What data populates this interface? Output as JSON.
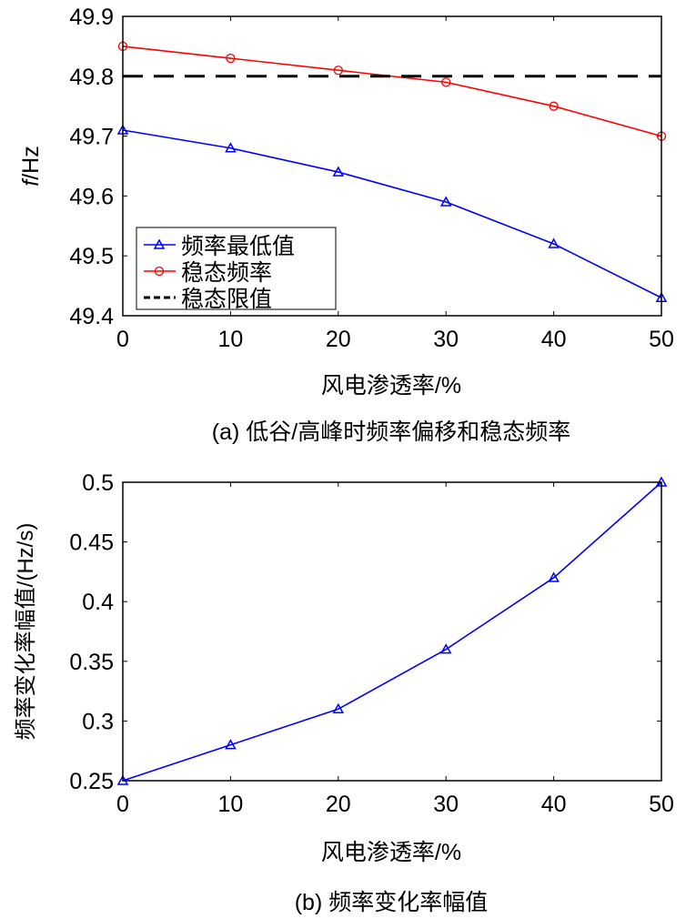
{
  "chart_data": [
    {
      "type": "line",
      "title": "",
      "caption": "(a) 低谷/高峰时频率偏移和稳态频率",
      "xlabel": "风电渗透率/%",
      "ylabel_italic": "f",
      "ylabel_rest": "/Hz",
      "xlim": [
        0,
        50
      ],
      "ylim": [
        49.4,
        49.9
      ],
      "xticks": [
        "0",
        "10",
        "20",
        "30",
        "40",
        "50"
      ],
      "yticks": [
        "49.4",
        "49.5",
        "49.6",
        "49.7",
        "49.8",
        "49.9"
      ],
      "x": [
        0,
        10,
        20,
        30,
        40,
        50
      ],
      "legend_position": "bottom-left",
      "series": [
        {
          "name": "频率最低值",
          "color": "#0000ff",
          "marker": "triangle",
          "values": [
            49.71,
            49.68,
            49.64,
            49.59,
            49.52,
            49.43
          ]
        },
        {
          "name": "稳态频率",
          "color": "#ff0000",
          "marker": "circle",
          "values": [
            49.85,
            49.83,
            49.81,
            49.79,
            49.75,
            49.7
          ]
        },
        {
          "name": "稳态限值",
          "color": "#000000",
          "marker": "none",
          "dashed": true,
          "values": [
            49.8,
            49.8,
            49.8,
            49.8,
            49.8,
            49.8
          ]
        }
      ]
    },
    {
      "type": "line",
      "title": "",
      "caption": "(b) 频率变化率幅值",
      "xlabel": "风电渗透率/%",
      "ylabel": "频率变化率幅值/(Hz/s)",
      "xlim": [
        0,
        50
      ],
      "ylim": [
        0.25,
        0.5
      ],
      "xticks": [
        "0",
        "10",
        "20",
        "30",
        "40",
        "50"
      ],
      "yticks": [
        "0.25",
        "0.3",
        "0.35",
        "0.4",
        "0.45",
        "0.5"
      ],
      "x": [
        0,
        10,
        20,
        30,
        40,
        50
      ],
      "series": [
        {
          "name": "频率变化率幅值",
          "color": "#0000ff",
          "marker": "triangle",
          "values": [
            0.25,
            0.28,
            0.31,
            0.36,
            0.42,
            0.5
          ]
        }
      ]
    }
  ]
}
